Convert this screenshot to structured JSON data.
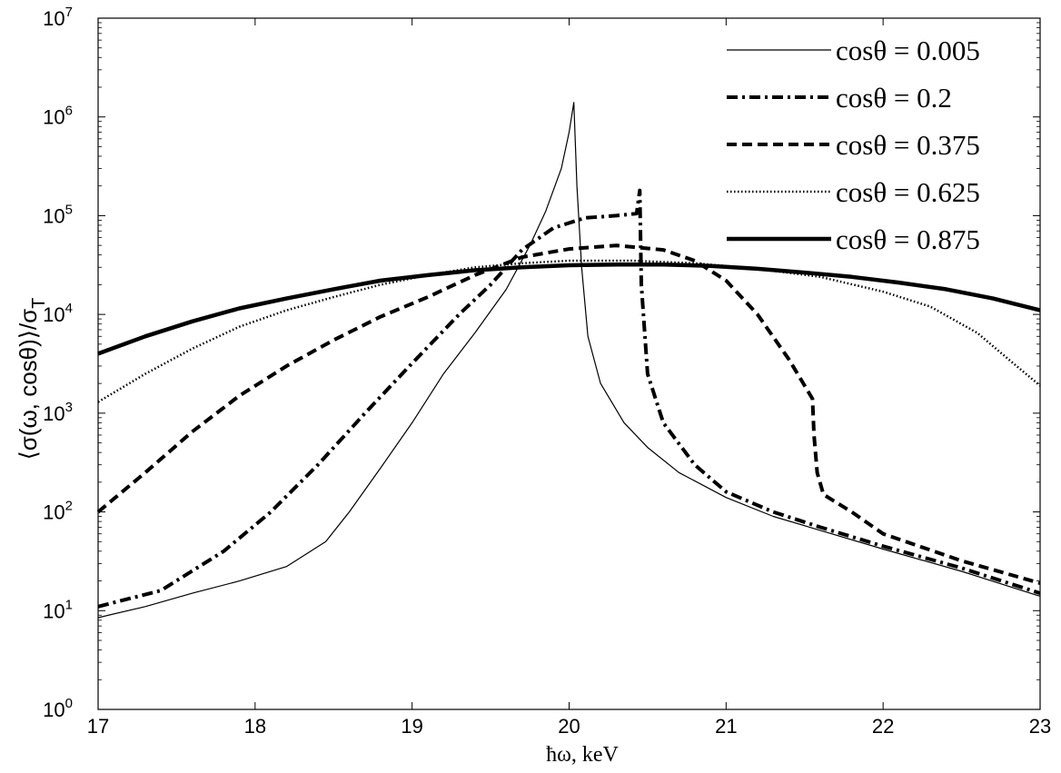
{
  "chart_data": {
    "type": "line",
    "x_scale": "linear",
    "y_scale": "log",
    "xlim": [
      17,
      23
    ],
    "ylim": [
      1,
      10000000
    ],
    "grid": false,
    "legend_position": "top-right",
    "xlabel": "ħω, keV",
    "ylabel": "⟨σ(ω, cosθ)⟩/σ",
    "ylabel_subscript": "T",
    "x_ticks": [
      17,
      18,
      19,
      20,
      21,
      22,
      23
    ],
    "x_tick_labels": [
      "17",
      "18",
      "19",
      "20",
      "21",
      "22",
      "23"
    ],
    "y_ticks": [
      1,
      10,
      100,
      1000,
      10000,
      100000,
      1000000,
      10000000
    ],
    "y_tick_base": "10",
    "y_tick_exponents": [
      "0",
      "1",
      "2",
      "3",
      "4",
      "5",
      "6",
      "7"
    ],
    "series": [
      {
        "name": "cosθ = 0.005",
        "style": "solid-thin",
        "color": "#000000",
        "points": [
          [
            17.0,
            8.5
          ],
          [
            17.3,
            11
          ],
          [
            17.6,
            15
          ],
          [
            17.9,
            20
          ],
          [
            18.2,
            28
          ],
          [
            18.45,
            50
          ],
          [
            18.6,
            100
          ],
          [
            18.8,
            280
          ],
          [
            19.0,
            800
          ],
          [
            19.2,
            2500
          ],
          [
            19.4,
            6500
          ],
          [
            19.6,
            18000
          ],
          [
            19.75,
            50000
          ],
          [
            19.85,
            110000
          ],
          [
            19.95,
            300000
          ],
          [
            20.0,
            700000
          ],
          [
            20.03,
            1400000
          ],
          [
            20.05,
            200000
          ],
          [
            20.08,
            30000
          ],
          [
            20.12,
            6000
          ],
          [
            20.2,
            2000
          ],
          [
            20.35,
            800
          ],
          [
            20.5,
            450
          ],
          [
            20.7,
            250
          ],
          [
            21.0,
            140
          ],
          [
            21.3,
            90
          ],
          [
            21.6,
            65
          ],
          [
            22.0,
            42
          ],
          [
            22.5,
            25
          ],
          [
            23.0,
            14
          ]
        ]
      },
      {
        "name": "cosθ = 0.2",
        "style": "dash-dot",
        "color": "#000000",
        "points": [
          [
            17.0,
            11
          ],
          [
            17.4,
            16
          ],
          [
            17.8,
            40
          ],
          [
            18.1,
            100
          ],
          [
            18.4,
            300
          ],
          [
            18.7,
            1000
          ],
          [
            19.0,
            3200
          ],
          [
            19.3,
            10000
          ],
          [
            19.5,
            20000
          ],
          [
            19.7,
            45000
          ],
          [
            19.9,
            75000
          ],
          [
            20.1,
            95000
          ],
          [
            20.3,
            100000
          ],
          [
            20.43,
            105000
          ],
          [
            20.45,
            180000
          ],
          [
            20.46,
            20000
          ],
          [
            20.5,
            2500
          ],
          [
            20.6,
            800
          ],
          [
            20.8,
            300
          ],
          [
            21.0,
            160
          ],
          [
            21.3,
            100
          ],
          [
            21.6,
            70
          ],
          [
            22.0,
            45
          ],
          [
            22.5,
            27
          ],
          [
            23.0,
            15
          ]
        ]
      },
      {
        "name": "cosθ = 0.375",
        "style": "dashed",
        "color": "#000000",
        "points": [
          [
            17.0,
            100
          ],
          [
            17.3,
            250
          ],
          [
            17.6,
            650
          ],
          [
            17.9,
            1500
          ],
          [
            18.2,
            3000
          ],
          [
            18.5,
            5500
          ],
          [
            18.8,
            9500
          ],
          [
            19.1,
            15000
          ],
          [
            19.4,
            25000
          ],
          [
            19.7,
            38000
          ],
          [
            20.0,
            46000
          ],
          [
            20.3,
            50000
          ],
          [
            20.6,
            45000
          ],
          [
            20.8,
            35000
          ],
          [
            21.0,
            22000
          ],
          [
            21.2,
            10000
          ],
          [
            21.4,
            3500
          ],
          [
            21.55,
            1400
          ],
          [
            21.56,
            600
          ],
          [
            21.58,
            250
          ],
          [
            21.62,
            150
          ],
          [
            21.8,
            100
          ],
          [
            22.0,
            60
          ],
          [
            22.5,
            32
          ],
          [
            23.0,
            19
          ]
        ]
      },
      {
        "name": "cosθ = 0.625",
        "style": "dotted",
        "color": "#000000",
        "points": [
          [
            17.0,
            1300
          ],
          [
            17.3,
            2500
          ],
          [
            17.6,
            4500
          ],
          [
            17.9,
            7500
          ],
          [
            18.2,
            11000
          ],
          [
            18.5,
            15000
          ],
          [
            18.8,
            20000
          ],
          [
            19.1,
            25000
          ],
          [
            19.4,
            30000
          ],
          [
            19.7,
            33000
          ],
          [
            20.0,
            35000
          ],
          [
            20.4,
            35000
          ],
          [
            20.8,
            33000
          ],
          [
            21.2,
            29000
          ],
          [
            21.6,
            24000
          ],
          [
            22.0,
            17000
          ],
          [
            22.3,
            12000
          ],
          [
            22.6,
            6500
          ],
          [
            22.8,
            3500
          ],
          [
            23.0,
            1900
          ]
        ]
      },
      {
        "name": "cosθ = 0.875",
        "style": "solid-thick",
        "color": "#000000",
        "points": [
          [
            17.0,
            4000
          ],
          [
            17.3,
            6000
          ],
          [
            17.6,
            8500
          ],
          [
            17.9,
            11500
          ],
          [
            18.2,
            14500
          ],
          [
            18.5,
            18000
          ],
          [
            18.8,
            22000
          ],
          [
            19.1,
            25000
          ],
          [
            19.4,
            28000
          ],
          [
            19.7,
            30000
          ],
          [
            20.0,
            31500
          ],
          [
            20.3,
            32000
          ],
          [
            20.6,
            32000
          ],
          [
            20.9,
            31000
          ],
          [
            21.2,
            29000
          ],
          [
            21.5,
            26500
          ],
          [
            21.8,
            24000
          ],
          [
            22.1,
            21000
          ],
          [
            22.4,
            18000
          ],
          [
            22.7,
            14500
          ],
          [
            23.0,
            11000
          ]
        ]
      }
    ]
  }
}
